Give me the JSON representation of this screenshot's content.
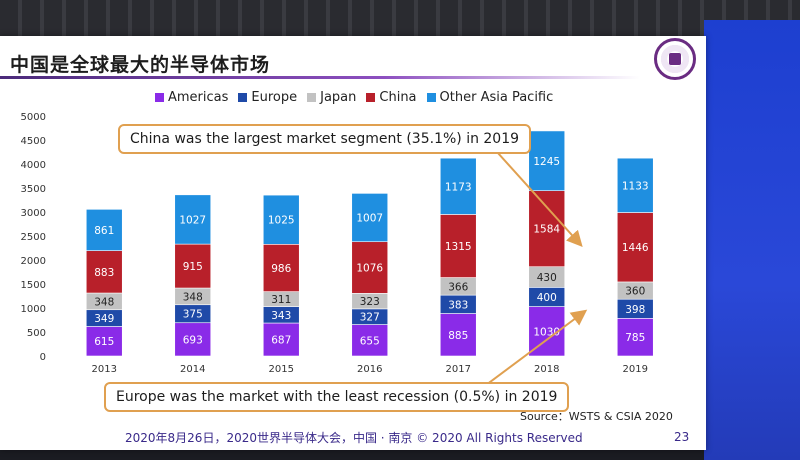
{
  "slide": {
    "title": "中国是全球最大的半导体市场",
    "callout_top": "China was the largest market segment (35.1%) in 2019",
    "callout_bottom": "Europe was the market with the least recession (0.5%) in 2019",
    "source": "Source：WSTS & CSIA 2020",
    "footer": "2020年8月26日，2020世界半导体大会，中国 · 南京 © 2020 All Rights Reserved",
    "page_number": "23"
  },
  "colors": {
    "Americas": "#8a2be8",
    "Europe": "#1f4aa8",
    "Japan": "#c2c2c2",
    "China": "#b8202a",
    "Other Asia Pacific": "#1f8fe0",
    "callout_border": "#e0a050"
  },
  "chart_data": {
    "type": "bar",
    "stacked": true,
    "categories": [
      "2013",
      "2014",
      "2015",
      "2016",
      "2017",
      "2018",
      "2019"
    ],
    "series": [
      {
        "name": "Americas",
        "values": [
          615,
          693,
          687,
          655,
          885,
          1030,
          785
        ]
      },
      {
        "name": "Europe",
        "values": [
          349,
          375,
          343,
          327,
          383,
          400,
          398
        ]
      },
      {
        "name": "Japan",
        "values": [
          348,
          348,
          311,
          323,
          366,
          430,
          360
        ]
      },
      {
        "name": "China",
        "values": [
          883,
          915,
          986,
          1076,
          1315,
          1584,
          1446
        ]
      },
      {
        "name": "Other Asia Pacific",
        "values": [
          861,
          1027,
          1025,
          1007,
          1173,
          1245,
          1133
        ]
      }
    ],
    "ylim": [
      0,
      5000
    ],
    "yticks": [
      "0",
      "500",
      "1000",
      "1500",
      "2000",
      "2500",
      "3000",
      "3500",
      "4000",
      "4500",
      "5000"
    ],
    "legend_position": "top",
    "grid": false
  }
}
